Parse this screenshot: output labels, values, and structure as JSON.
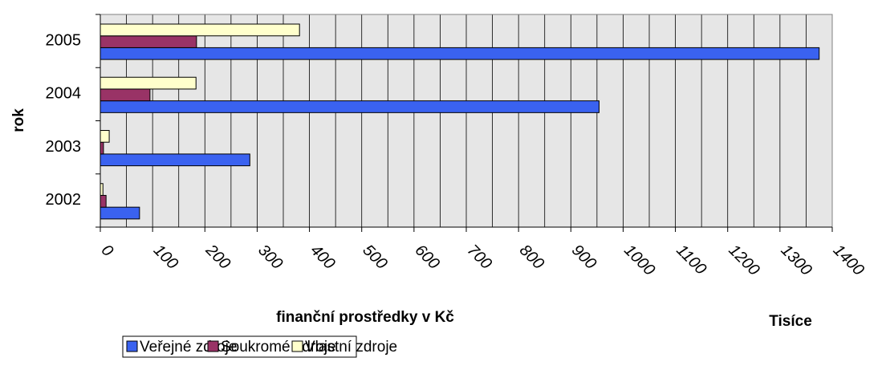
{
  "chart_data": {
    "type": "hbar",
    "categories": [
      "2005",
      "2004",
      "2003",
      "2002"
    ],
    "series": [
      {
        "name": "Veřejné zdroje",
        "color": "#3a62f0",
        "values": [
          1375,
          954,
          286,
          75
        ]
      },
      {
        "name": "Soukromé zdroje",
        "color": "#993366",
        "values": [
          184,
          95,
          6,
          11
        ]
      },
      {
        "name": "Vlastní zdroje",
        "color": "#ffffcc",
        "values": [
          381,
          183,
          17,
          5
        ]
      }
    ],
    "xlabel": "finanční prostředky v Kč",
    "ylabel": "rok",
    "x_unit_label": "Tisíce",
    "xlim": [
      0,
      1400
    ],
    "xticks": [
      0,
      100,
      200,
      300,
      400,
      500,
      600,
      700,
      800,
      900,
      1000,
      1100,
      1200,
      1300,
      1400
    ],
    "x_minor_ticks": [
      50,
      150,
      250,
      350,
      450,
      550,
      650,
      750,
      850,
      950,
      1050,
      1150,
      1250,
      1350
    ],
    "grid": true,
    "legend": "bottom"
  }
}
